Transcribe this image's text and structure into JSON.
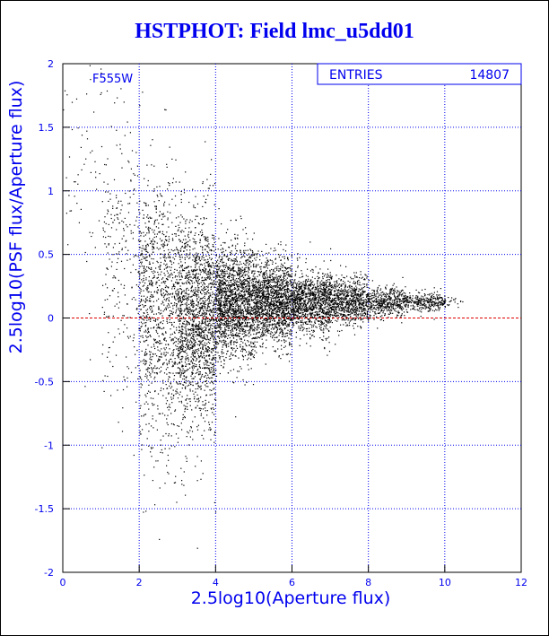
{
  "header": {
    "title": "HSTPHOT: Field lmc_u5dd01"
  },
  "colors": {
    "axis": "#0000ee",
    "points": "#000000",
    "zero_line": "#dd0000",
    "background": "#ffffff"
  },
  "stats_box": {
    "label": "ENTRIES",
    "value": "14807"
  },
  "filter_label": "F555W",
  "chart_data": {
    "type": "scatter",
    "title": "HSTPHOT: Field lmc_u5dd01",
    "xlabel": "2.5log10(Aperture flux)",
    "ylabel": "2.5log10(PSF flux/Aperture flux)",
    "xlim": [
      0,
      12
    ],
    "ylim": [
      -2,
      2
    ],
    "xticks": [
      0,
      2,
      4,
      6,
      8,
      10,
      12
    ],
    "yticks": [
      -2,
      -1.5,
      -1,
      -0.5,
      0,
      0.5,
      1,
      1.5,
      2
    ],
    "grid": true,
    "reference_line_y": 0,
    "entries": 14807,
    "density_profile": [
      {
        "x": 0.5,
        "center": 1.3,
        "spread": 0.6,
        "weight": 0.5
      },
      {
        "x": 1.5,
        "center": 0.6,
        "spread": 0.6,
        "weight": 2.5
      },
      {
        "x": 2.5,
        "center": 0.2,
        "spread": 0.45,
        "weight": 8
      },
      {
        "x": 3.5,
        "center": 0.12,
        "spread": 0.35,
        "weight": 14
      },
      {
        "x": 4.5,
        "center": 0.12,
        "spread": 0.22,
        "weight": 15
      },
      {
        "x": 5.5,
        "center": 0.13,
        "spread": 0.16,
        "weight": 13
      },
      {
        "x": 6.5,
        "center": 0.13,
        "spread": 0.12,
        "weight": 10
      },
      {
        "x": 7.5,
        "center": 0.13,
        "spread": 0.09,
        "weight": 7
      },
      {
        "x": 8.5,
        "center": 0.13,
        "spread": 0.06,
        "weight": 4
      },
      {
        "x": 9.5,
        "center": 0.13,
        "spread": 0.04,
        "weight": 2
      },
      {
        "x": 10.0,
        "center": 0.13,
        "spread": 0.03,
        "weight": 0.4
      }
    ],
    "rendered_points": 9000
  }
}
